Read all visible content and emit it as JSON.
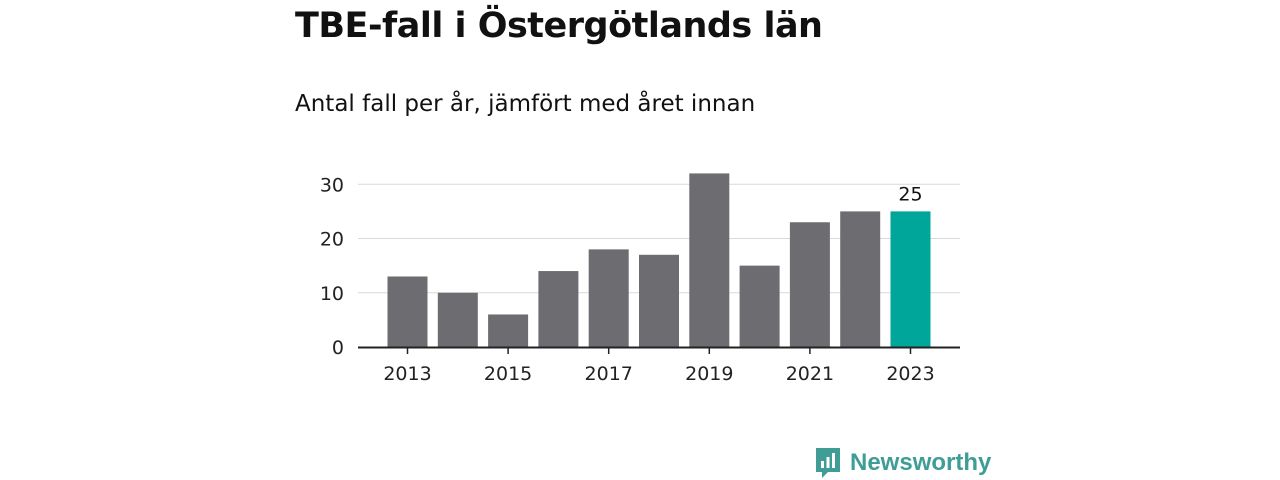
{
  "chart_data": {
    "type": "bar",
    "title": "TBE-fall i Östergötlands län",
    "subtitle": "Antal fall per år, jämfört med året innan",
    "categories": [
      "2013",
      "2014",
      "2015",
      "2016",
      "2017",
      "2018",
      "2019",
      "2020",
      "2021",
      "2022",
      "2023"
    ],
    "values": [
      13,
      10,
      6,
      14,
      18,
      17,
      32,
      15,
      23,
      25,
      25
    ],
    "x_tick_labels": [
      "2013",
      "2015",
      "2017",
      "2019",
      "2021",
      "2023"
    ],
    "y_ticks": [
      0,
      10,
      20,
      30
    ],
    "ylim": [
      0,
      33
    ],
    "grid": true,
    "highlight_index": 10,
    "highlight_label": "25",
    "colors": {
      "bar": "#6d6c71",
      "highlight": "#00a69a",
      "grid": "#d9d9d9",
      "axis": "#222222"
    }
  },
  "brand": {
    "name": "Newsworthy",
    "color": "#3f9d96"
  }
}
